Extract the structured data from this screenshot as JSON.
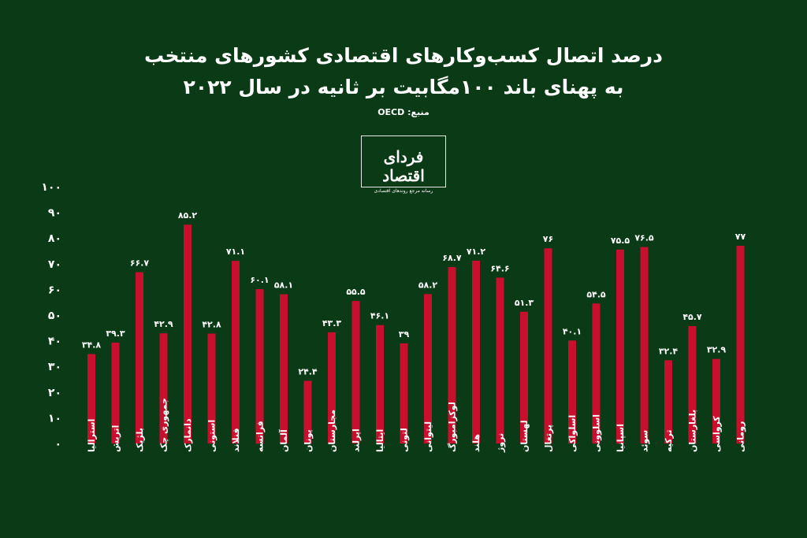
{
  "header": {
    "title_line1": "درصد اتصال کسب‌وکارهای اقتصادی کشورهای منتخب",
    "title_line2": "به پهنای باند ۱۰۰مگابیت بر ثانیه در سال ۲۰۲۲",
    "source": "منبع: OECD"
  },
  "logo": {
    "name": "فردای اقتصاد",
    "tagline": "رسانه مرجع روندهای اقتصادی"
  },
  "colors": {
    "bar": "#c8102e",
    "background": "#0b3a17",
    "text": "#ffffff"
  },
  "chart_data": {
    "type": "bar",
    "categories": [
      "استرالیا",
      "اتریش",
      "بلژیک",
      "جمهوری چک",
      "دانمارک",
      "استونی",
      "فنلاند",
      "فرانسه",
      "آلمان",
      "یونان",
      "مجارستان",
      "ایرلند",
      "ایتالیا",
      "لتونی",
      "لیتوانی",
      "لوکزامبورگ",
      "هلند",
      "نروژ",
      "لهستان",
      "پرتغال",
      "اسلواکی",
      "اسلوونی",
      "اسپانیا",
      "سوئد",
      "ترکیه",
      "بلغارستان",
      "کرواسی",
      "رومانی"
    ],
    "values": [
      34.8,
      39.3,
      66.7,
      42.9,
      85.2,
      42.8,
      71.1,
      60.1,
      58.1,
      24.4,
      43.3,
      55.5,
      46.1,
      39,
      58.2,
      68.7,
      71.2,
      64.6,
      51.3,
      76,
      40.1,
      54.5,
      75.5,
      76.5,
      32.4,
      45.7,
      32.9,
      77
    ],
    "value_labels": [
      "۳۴.۸",
      "۳۹.۳",
      "۶۶.۷",
      "۴۲.۹",
      "۸۵.۲",
      "۴۲.۸",
      "۷۱.۱",
      "۶۰.۱",
      "۵۸.۱",
      "۲۴.۴",
      "۴۳.۳",
      "۵۵.۵",
      "۴۶.۱",
      "۳۹",
      "۵۸.۲",
      "۶۸.۷",
      "۷۱.۲",
      "۶۴.۶",
      "۵۱.۳",
      "۷۶",
      "۴۰.۱",
      "۵۴.۵",
      "۷۵.۵",
      "۷۶.۵",
      "۳۲.۴",
      "۴۵.۷",
      "۳۲.۹",
      "۷۷"
    ],
    "ylim": [
      0,
      100
    ],
    "y_ticks": [
      0,
      10,
      20,
      30,
      40,
      50,
      60,
      70,
      80,
      90,
      100
    ],
    "y_tick_labels": [
      "۰",
      "۱۰",
      "۲۰",
      "۳۰",
      "۴۰",
      "۵۰",
      "۶۰",
      "۷۰",
      "۸۰",
      "۹۰",
      "۱۰۰"
    ],
    "grid": false,
    "legend": "none"
  }
}
